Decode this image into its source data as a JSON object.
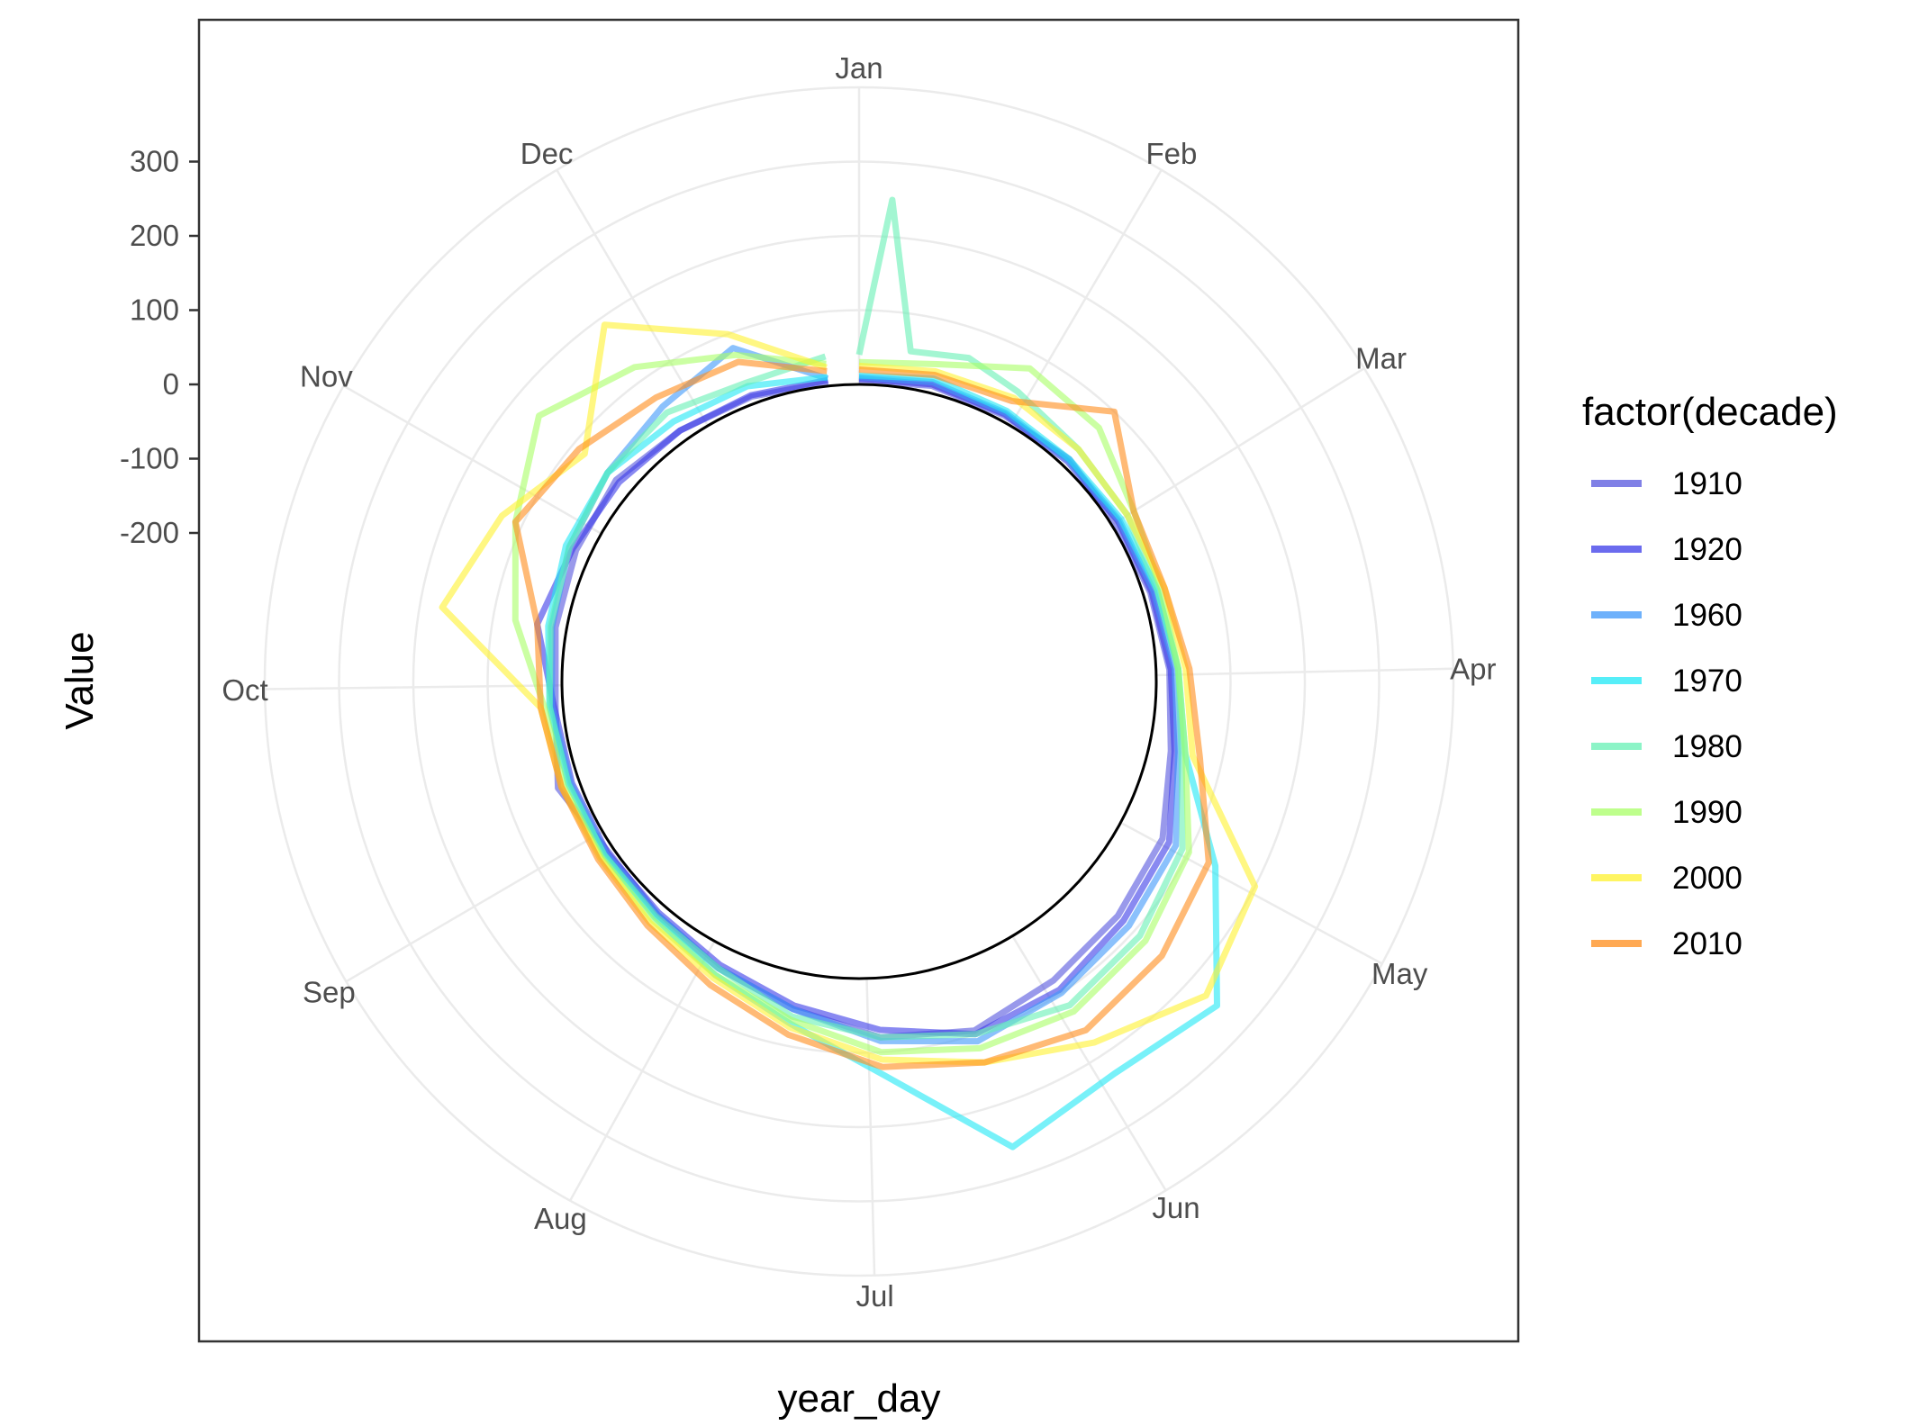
{
  "chart_data": {
    "type": "line",
    "coordinate_system": "polar",
    "xlabel": "year_day",
    "ylabel": "Value",
    "theta_labels": [
      "Jan",
      "Feb",
      "Mar",
      "Apr",
      "May",
      "Jun",
      "Jul",
      "Aug",
      "Sep",
      "Oct",
      "Nov",
      "Dec"
    ],
    "y_ticks": [
      "300",
      "200",
      "100",
      "0",
      "-100",
      "-200"
    ],
    "y_tick_values": [
      300,
      200,
      100,
      0,
      -100,
      -200
    ],
    "ylim": [
      -400,
      400
    ],
    "grid": true,
    "reference_circle_value": 0,
    "legend": {
      "title": "factor(decade)",
      "position": "right",
      "entries": [
        "1910",
        "1920",
        "1960",
        "1970",
        "1980",
        "1990",
        "2000",
        "2010"
      ]
    },
    "series": [
      {
        "name": "1910",
        "color": "#5555DD",
        "x": [
          1,
          15,
          30,
          45,
          60,
          75,
          90,
          105,
          120,
          135,
          150,
          165,
          180,
          195,
          210,
          225,
          240,
          255,
          270,
          285,
          300,
          315,
          330,
          345,
          360
        ],
        "y": [
          5,
          10,
          8,
          12,
          6,
          10,
          18,
          30,
          60,
          70,
          80,
          95,
          80,
          50,
          30,
          15,
          8,
          30,
          10,
          15,
          20,
          25,
          15,
          10,
          5
        ]
      },
      {
        "name": "1920",
        "color": "#3A3AE8",
        "x": [
          1,
          15,
          30,
          45,
          60,
          75,
          90,
          105,
          120,
          135,
          150,
          165,
          180,
          195,
          210,
          225,
          240,
          255,
          270,
          285,
          300,
          315,
          330,
          345,
          360
        ],
        "y": [
          8,
          12,
          10,
          8,
          10,
          12,
          20,
          35,
          70,
          80,
          95,
          100,
          70,
          45,
          25,
          12,
          10,
          10,
          12,
          40,
          25,
          20,
          15,
          12,
          8
        ]
      },
      {
        "name": "1960",
        "color": "#3D97FA",
        "x": [
          1,
          15,
          30,
          45,
          60,
          75,
          90,
          105,
          120,
          135,
          150,
          165,
          180,
          195,
          210,
          225,
          240,
          255,
          270,
          285,
          300,
          315,
          330,
          345,
          360
        ],
        "y": [
          10,
          15,
          12,
          10,
          12,
          15,
          25,
          40,
          80,
          90,
          100,
          110,
          85,
          50,
          30,
          15,
          12,
          12,
          15,
          20,
          30,
          40,
          55,
          80,
          10
        ]
      },
      {
        "name": "1970",
        "color": "#1EE8F5",
        "x": [
          1,
          15,
          30,
          45,
          60,
          75,
          90,
          105,
          120,
          135,
          150,
          165,
          180,
          195,
          210,
          225,
          240,
          255,
          270,
          285,
          300,
          315,
          330,
          345,
          360
        ],
        "y": [
          12,
          20,
          15,
          12,
          15,
          20,
          30,
          50,
          140,
          250,
          230,
          260,
          130,
          70,
          40,
          20,
          15,
          15,
          18,
          25,
          35,
          40,
          30,
          25,
          12
        ]
      },
      {
        "name": "1980",
        "color": "#66F0B4",
        "x": [
          1,
          5,
          10,
          20,
          30,
          45,
          60,
          75,
          90,
          105,
          120,
          135,
          150,
          165,
          180,
          195,
          210,
          225,
          240,
          255,
          270,
          285,
          300,
          315,
          330,
          345,
          360
        ],
        "y": [
          40,
          250,
          50,
          60,
          45,
          30,
          25,
          20,
          30,
          45,
          90,
          110,
          120,
          100,
          80,
          60,
          30,
          18,
          15,
          15,
          18,
          22,
          30,
          40,
          45,
          30,
          40
        ]
      },
      {
        "name": "1990",
        "color": "#A8FF66",
        "x": [
          1,
          15,
          30,
          45,
          60,
          75,
          90,
          105,
          120,
          135,
          150,
          165,
          180,
          195,
          210,
          225,
          240,
          255,
          270,
          285,
          300,
          315,
          330,
          345,
          360
        ],
        "y": [
          30,
          40,
          80,
          70,
          35,
          25,
          30,
          50,
          100,
          120,
          130,
          120,
          100,
          65,
          40,
          25,
          20,
          22,
          25,
          70,
          110,
          160,
          120,
          70,
          30
        ]
      },
      {
        "name": "2000",
        "color": "#FFF22E",
        "x": [
          1,
          15,
          30,
          45,
          60,
          75,
          90,
          105,
          120,
          135,
          150,
          165,
          180,
          195,
          210,
          225,
          240,
          255,
          270,
          285,
          300,
          315,
          330,
          345,
          360
        ],
        "y": [
          25,
          30,
          35,
          30,
          25,
          30,
          40,
          60,
          200,
          230,
          180,
          140,
          110,
          75,
          45,
          30,
          22,
          25,
          30,
          170,
          130,
          80,
          190,
          100,
          25
        ]
      },
      {
        "name": "2010",
        "color": "#FF8C1A",
        "x": [
          1,
          15,
          30,
          45,
          60,
          75,
          90,
          105,
          120,
          135,
          150,
          165,
          180,
          195,
          210,
          225,
          240,
          255,
          270,
          285,
          300,
          315,
          330,
          345,
          360
        ],
        "y": [
          20,
          25,
          30,
          100,
          35,
          30,
          45,
          70,
          130,
          150,
          160,
          140,
          120,
          85,
          55,
          35,
          25,
          25,
          30,
          40,
          110,
          90,
          70,
          60,
          20
        ]
      }
    ]
  }
}
